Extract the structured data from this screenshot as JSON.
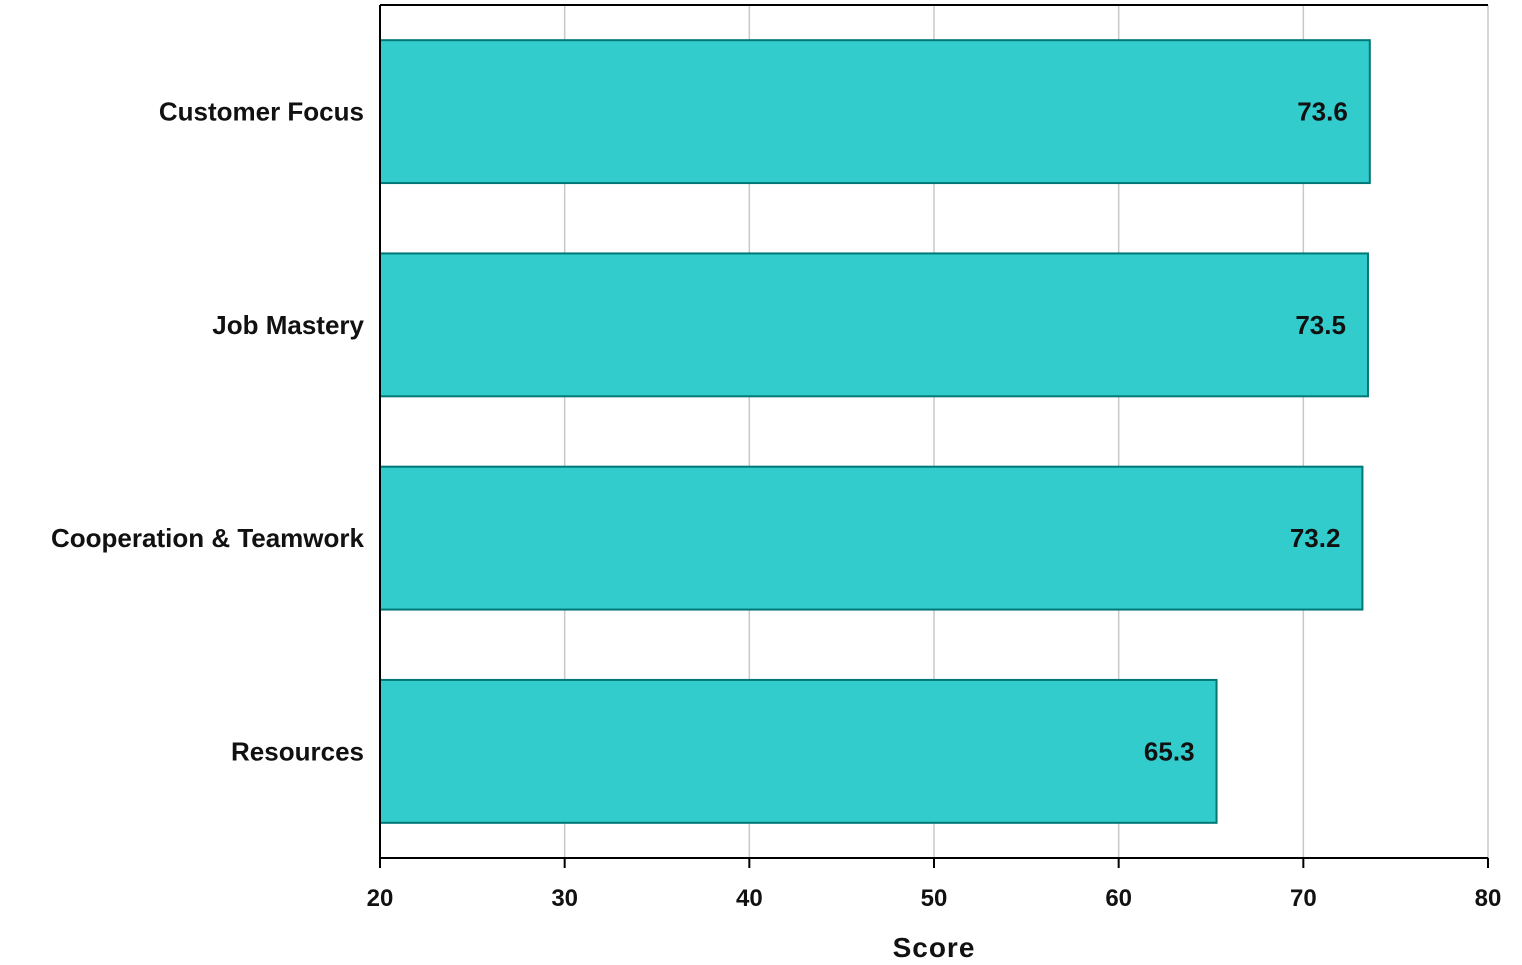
{
  "chart_data": {
    "type": "bar",
    "orientation": "horizontal",
    "categories": [
      "Customer Focus",
      "Job Mastery",
      "Cooperation & Teamwork",
      "Resources"
    ],
    "values": [
      73.6,
      73.5,
      73.2,
      65.3
    ],
    "value_labels": [
      "73.6",
      "73.5",
      "73.2",
      "65.3"
    ],
    "title": "",
    "xlabel": "Score",
    "ylabel": "",
    "xlim": [
      20,
      80
    ],
    "xticks": [
      20,
      30,
      40,
      50,
      60,
      70,
      80
    ],
    "xtick_labels": [
      "20",
      "30",
      "40",
      "50",
      "60",
      "70",
      "80"
    ],
    "grid": "vertical",
    "legend": "none",
    "bar_color": "#33CCCC",
    "bar_edge_color": "#007777",
    "grid_color": "#c8c8c8"
  }
}
